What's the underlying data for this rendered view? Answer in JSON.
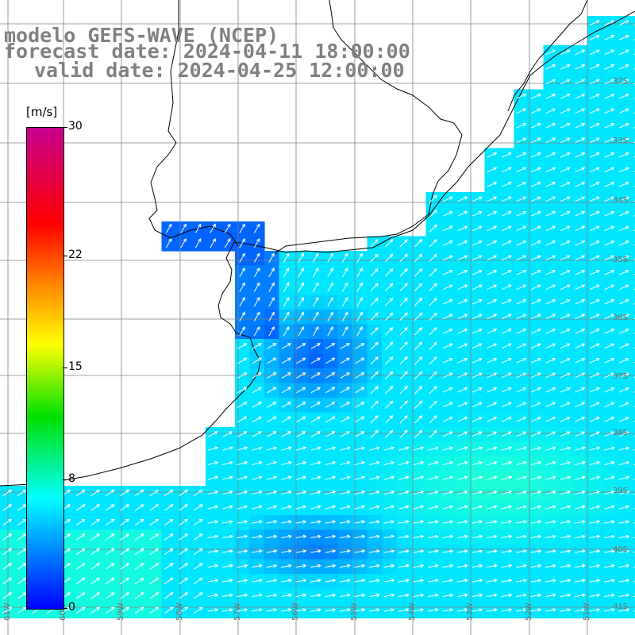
{
  "title": {
    "line1": "modelo GEFS-WAVE (NCEP)",
    "line2": "forecast date: 2024-04-11 18:00:00",
    "line3": "valid date: 2024-04-25 12:00:00"
  },
  "colorbar": {
    "unit": "[m/s]",
    "ticks": [
      "30",
      "22",
      "15",
      "8",
      "0"
    ],
    "tick_values": [
      30,
      22,
      15,
      8,
      0
    ],
    "range": [
      0,
      30
    ],
    "colors": [
      "#0000ff",
      "#0090ff",
      "#00ffff",
      "#00e000",
      "#ffff00",
      "#ff8000",
      "#ff0000",
      "#c80090"
    ]
  },
  "grid": {
    "lat_labels": [
      "32S",
      "33S",
      "34S",
      "35S",
      "36S",
      "37S",
      "38S",
      "39S",
      "40S",
      "41S"
    ],
    "lon_labels": [
      "61W",
      "60W",
      "59W",
      "58W",
      "57W",
      "56W",
      "55W",
      "54W",
      "53W",
      "52W",
      "51W"
    ],
    "lon_range": [
      -61.3,
      -50.4
    ],
    "lat_range": [
      -41.2,
      -30.5
    ]
  },
  "field": {
    "variable": "wind speed and direction",
    "land_color": "#ffffff",
    "coast_color": "#000000",
    "grid_color": "#808080"
  }
}
